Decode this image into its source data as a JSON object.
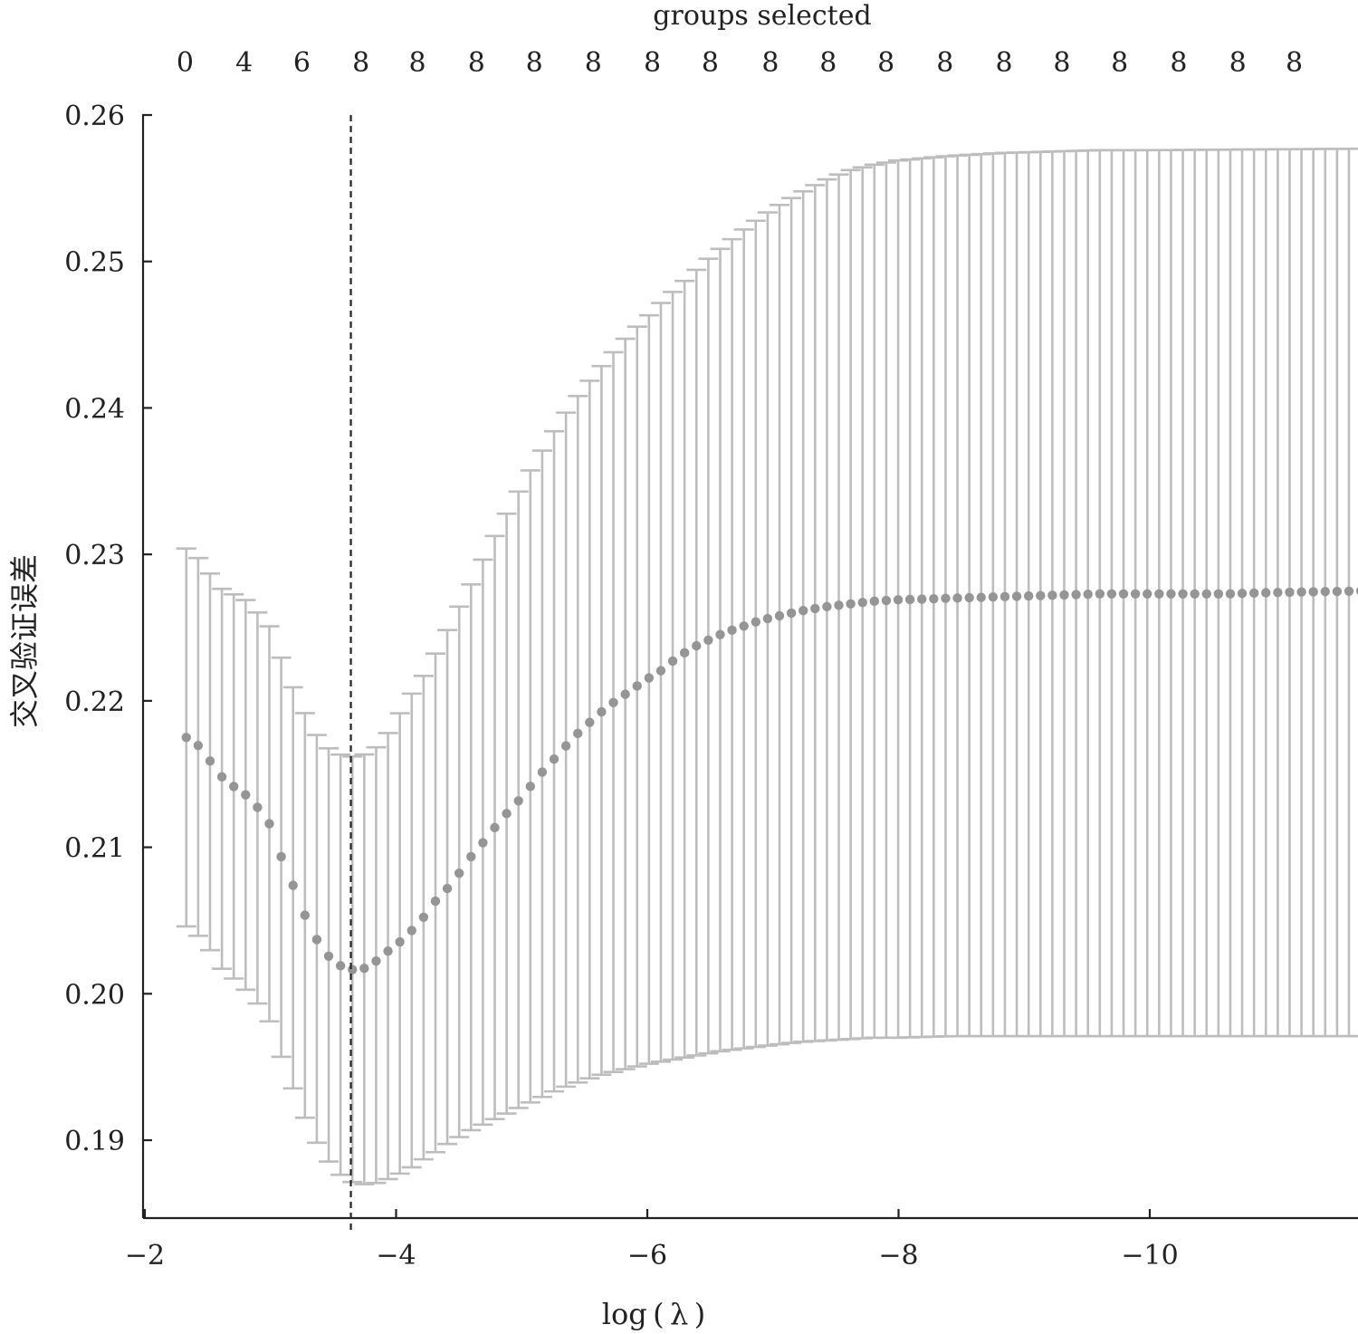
{
  "chart_data": {
    "type": "scatter",
    "subtype": "errorbar",
    "top_axis_title": "groups selected",
    "top_axis_ticks": [
      {
        "x": -2.32,
        "label": "0"
      },
      {
        "x": -2.79,
        "label": "4"
      },
      {
        "x": -3.25,
        "label": "6"
      },
      {
        "x": -3.72,
        "label": "8"
      },
      {
        "x": -4.17,
        "label": "8"
      },
      {
        "x": -4.64,
        "label": "8"
      },
      {
        "x": -5.1,
        "label": "8"
      },
      {
        "x": -5.57,
        "label": "8"
      },
      {
        "x": -6.04,
        "label": "8"
      },
      {
        "x": -6.5,
        "label": "8"
      },
      {
        "x": -6.98,
        "label": "8"
      },
      {
        "x": -7.44,
        "label": "8"
      },
      {
        "x": -7.9,
        "label": "8"
      },
      {
        "x": -8.37,
        "label": "8"
      },
      {
        "x": -8.84,
        "label": "8"
      },
      {
        "x": -9.3,
        "label": "8"
      },
      {
        "x": -9.76,
        "label": "8"
      },
      {
        "x": -10.23,
        "label": "8"
      },
      {
        "x": -10.7,
        "label": "8"
      },
      {
        "x": -11.15,
        "label": "8"
      }
    ],
    "xlabel": "log ( λ )",
    "ylabel": "交叉验证误差",
    "xlim": [
      -2,
      -12
    ],
    "ylim": [
      0.185,
      0.26
    ],
    "x_ticks": [
      {
        "value": -2,
        "label": "−2"
      },
      {
        "value": -4,
        "label": "−4"
      },
      {
        "value": -6,
        "label": "−6"
      },
      {
        "value": -8,
        "label": "−8"
      },
      {
        "value": -10,
        "label": "−10"
      }
    ],
    "y_ticks": [
      {
        "value": 0.26,
        "label": "0.26"
      },
      {
        "value": 0.25,
        "label": "0.25"
      },
      {
        "value": 0.24,
        "label": "0.24"
      },
      {
        "value": 0.23,
        "label": "0.23"
      },
      {
        "value": 0.22,
        "label": "0.22"
      },
      {
        "value": 0.21,
        "label": "0.21"
      },
      {
        "value": 0.2,
        "label": "0.20"
      },
      {
        "value": 0.19,
        "label": "0.19"
      }
    ],
    "vline_x": -3.64,
    "x_range": [
      -2.33,
      -11.68
    ],
    "point_count": 100,
    "mean_knots": [
      [
        -2.33,
        0.2175
      ],
      [
        -2.42,
        0.217
      ],
      [
        -2.51,
        0.216
      ],
      [
        -2.6,
        0.2149
      ],
      [
        -2.7,
        0.2142
      ],
      [
        -2.8,
        0.2136
      ],
      [
        -2.9,
        0.2127
      ],
      [
        -3.0,
        0.2115
      ],
      [
        -3.1,
        0.209
      ],
      [
        -3.2,
        0.207
      ],
      [
        -3.3,
        0.2048
      ],
      [
        -3.4,
        0.2032
      ],
      [
        -3.5,
        0.2022
      ],
      [
        -3.6,
        0.2017
      ],
      [
        -3.7,
        0.2016
      ],
      [
        -3.8,
        0.2019
      ],
      [
        -3.9,
        0.2027
      ],
      [
        -4.0,
        0.2033
      ],
      [
        -4.1,
        0.2041
      ],
      [
        -4.2,
        0.205
      ],
      [
        -4.3,
        0.2062
      ],
      [
        -4.4,
        0.2071
      ],
      [
        -4.5,
        0.2082
      ],
      [
        -4.6,
        0.2094
      ],
      [
        -4.7,
        0.2104
      ],
      [
        -4.8,
        0.2115
      ],
      [
        -4.9,
        0.2125
      ],
      [
        -5.0,
        0.2134
      ],
      [
        -5.1,
        0.2145
      ],
      [
        -5.2,
        0.2155
      ],
      [
        -5.3,
        0.2164
      ],
      [
        -5.4,
        0.2174
      ],
      [
        -5.5,
        0.2182
      ],
      [
        -5.6,
        0.219
      ],
      [
        -5.7,
        0.2197
      ],
      [
        -5.8,
        0.2203
      ],
      [
        -5.9,
        0.2209
      ],
      [
        -6.0,
        0.2215
      ],
      [
        -6.1,
        0.222
      ],
      [
        -6.2,
        0.2227
      ],
      [
        -6.3,
        0.2233
      ],
      [
        -6.4,
        0.2238
      ],
      [
        -6.5,
        0.2242
      ],
      [
        -6.6,
        0.2246
      ],
      [
        -6.7,
        0.2249
      ],
      [
        -6.8,
        0.2252
      ],
      [
        -6.9,
        0.2255
      ],
      [
        -7.0,
        0.2257
      ],
      [
        -7.2,
        0.2261
      ],
      [
        -7.4,
        0.2264
      ],
      [
        -7.6,
        0.2266
      ],
      [
        -7.8,
        0.2268
      ],
      [
        -8.0,
        0.2269
      ],
      [
        -8.4,
        0.227
      ],
      [
        -8.8,
        0.2271
      ],
      [
        -9.2,
        0.2272
      ],
      [
        -9.6,
        0.2273
      ],
      [
        -10.0,
        0.2273
      ],
      [
        -10.6,
        0.2273
      ],
      [
        -11.0,
        0.2274
      ],
      [
        -11.68,
        0.2275
      ]
    ],
    "lower_knots": [
      [
        -2.33,
        0.2046
      ],
      [
        -2.42,
        0.204
      ],
      [
        -2.51,
        0.2031
      ],
      [
        -2.6,
        0.2018
      ],
      [
        -2.7,
        0.2011
      ],
      [
        -2.8,
        0.2003
      ],
      [
        -2.9,
        0.1993
      ],
      [
        -3.0,
        0.198
      ],
      [
        -3.1,
        0.1953
      ],
      [
        -3.2,
        0.1931
      ],
      [
        -3.3,
        0.191
      ],
      [
        -3.4,
        0.1893
      ],
      [
        -3.5,
        0.1881
      ],
      [
        -3.6,
        0.1873
      ],
      [
        -3.7,
        0.187
      ],
      [
        -3.8,
        0.187
      ],
      [
        -3.9,
        0.1872
      ],
      [
        -4.0,
        0.1876
      ],
      [
        -4.1,
        0.188
      ],
      [
        -4.2,
        0.1886
      ],
      [
        -4.3,
        0.1891
      ],
      [
        -4.4,
        0.1897
      ],
      [
        -4.5,
        0.1902
      ],
      [
        -4.6,
        0.1907
      ],
      [
        -4.7,
        0.1911
      ],
      [
        -4.8,
        0.1915
      ],
      [
        -4.9,
        0.1919
      ],
      [
        -5.0,
        0.1923
      ],
      [
        -5.1,
        0.1927
      ],
      [
        -5.2,
        0.1931
      ],
      [
        -5.3,
        0.1935
      ],
      [
        -5.4,
        0.1938
      ],
      [
        -5.5,
        0.1941
      ],
      [
        -5.6,
        0.1944
      ],
      [
        -5.7,
        0.1946
      ],
      [
        -5.8,
        0.1948
      ],
      [
        -5.9,
        0.195
      ],
      [
        -6.0,
        0.1952
      ],
      [
        -6.2,
        0.1955
      ],
      [
        -6.4,
        0.1958
      ],
      [
        -6.6,
        0.1961
      ],
      [
        -6.8,
        0.1963
      ],
      [
        -7.0,
        0.1965
      ],
      [
        -7.2,
        0.1967
      ],
      [
        -7.4,
        0.1968
      ],
      [
        -7.6,
        0.1969
      ],
      [
        -7.8,
        0.197
      ],
      [
        -8.0,
        0.197
      ],
      [
        -8.4,
        0.1971
      ],
      [
        -9.0,
        0.1971
      ],
      [
        -10.0,
        0.1971
      ],
      [
        -11.68,
        0.1971
      ]
    ],
    "upper_knots": [
      [
        -2.33,
        0.2304
      ],
      [
        -2.42,
        0.2298
      ],
      [
        -2.51,
        0.2288
      ],
      [
        -2.6,
        0.2277
      ],
      [
        -2.7,
        0.2273
      ],
      [
        -2.8,
        0.2269
      ],
      [
        -2.9,
        0.226
      ],
      [
        -3.0,
        0.225
      ],
      [
        -3.1,
        0.2226
      ],
      [
        -3.2,
        0.2205
      ],
      [
        -3.3,
        0.2187
      ],
      [
        -3.4,
        0.2172
      ],
      [
        -3.5,
        0.2165
      ],
      [
        -3.6,
        0.2162
      ],
      [
        -3.7,
        0.2162
      ],
      [
        -3.8,
        0.2165
      ],
      [
        -3.9,
        0.2173
      ],
      [
        -4.0,
        0.2187
      ],
      [
        -4.1,
        0.2202
      ],
      [
        -4.2,
        0.2214
      ],
      [
        -4.3,
        0.223
      ],
      [
        -4.4,
        0.2247
      ],
      [
        -4.5,
        0.2264
      ],
      [
        -4.6,
        0.228
      ],
      [
        -4.7,
        0.2298
      ],
      [
        -4.8,
        0.2315
      ],
      [
        -4.9,
        0.2331
      ],
      [
        -5.0,
        0.2347
      ],
      [
        -5.1,
        0.2362
      ],
      [
        -5.2,
        0.2376
      ],
      [
        -5.3,
        0.239
      ],
      [
        -5.4,
        0.2403
      ],
      [
        -5.5,
        0.2414
      ],
      [
        -5.6,
        0.2425
      ],
      [
        -5.7,
        0.2435
      ],
      [
        -5.8,
        0.2445
      ],
      [
        -5.9,
        0.2454
      ],
      [
        -6.0,
        0.2462
      ],
      [
        -6.1,
        0.2471
      ],
      [
        -6.2,
        0.2479
      ],
      [
        -6.3,
        0.2487
      ],
      [
        -6.4,
        0.2495
      ],
      [
        -6.5,
        0.2503
      ],
      [
        -6.6,
        0.251
      ],
      [
        -6.7,
        0.2517
      ],
      [
        -6.8,
        0.2524
      ],
      [
        -6.9,
        0.253
      ],
      [
        -7.0,
        0.2536
      ],
      [
        -7.2,
        0.2546
      ],
      [
        -7.4,
        0.2555
      ],
      [
        -7.6,
        0.2562
      ],
      [
        -7.8,
        0.2566
      ],
      [
        -8.0,
        0.2569
      ],
      [
        -8.4,
        0.2572
      ],
      [
        -8.8,
        0.2574
      ],
      [
        -9.2,
        0.2575
      ],
      [
        -9.6,
        0.2576
      ],
      [
        -10.0,
        0.2576
      ],
      [
        -11.68,
        0.2577
      ]
    ],
    "grid": false,
    "legend": "none",
    "colors": {
      "error_bar": "#bdbdbd",
      "mean_point": "#959595",
      "axis": "#222222",
      "vline": "#222222"
    }
  }
}
